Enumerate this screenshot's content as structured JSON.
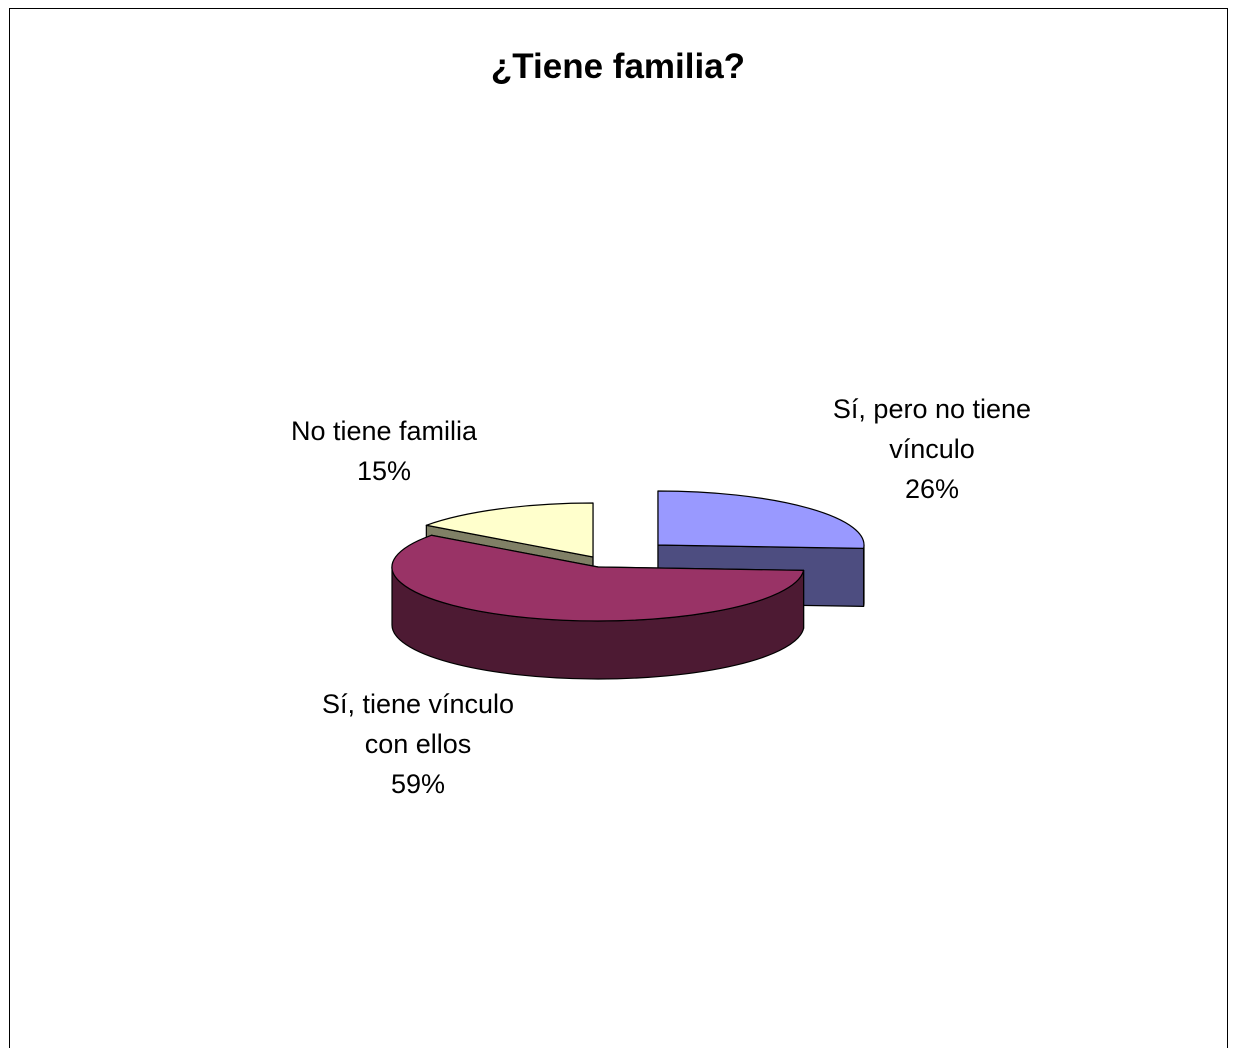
{
  "chart_data": {
    "type": "pie",
    "title": "¿Tiene familia?",
    "style": "3d-exploded",
    "slices": [
      {
        "label_lines": [
          "Sí, pero no tiene",
          "vínculo"
        ],
        "value": 26,
        "value_label": "26%",
        "top_color": "#9999ff",
        "side_color": "#4d4d80"
      },
      {
        "label_lines": [
          "Sí, tiene vínculo",
          "con ellos"
        ],
        "value": 59,
        "value_label": "59%",
        "top_color": "#993366",
        "side_color": "#4d1a33"
      },
      {
        "label_lines": [
          "No tiene familia"
        ],
        "value": 15,
        "value_label": "15%",
        "top_color": "#ffffcc",
        "side_color": "#808066"
      }
    ]
  }
}
